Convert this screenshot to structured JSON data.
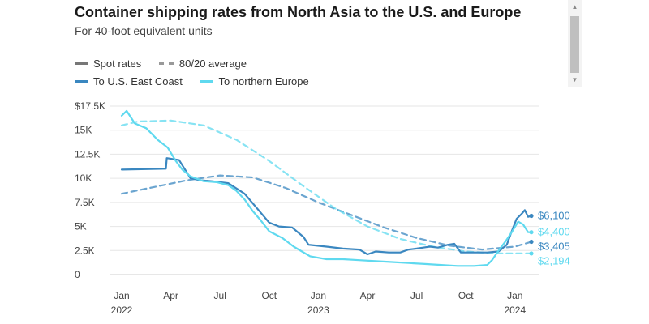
{
  "chart_data": {
    "type": "line",
    "title": "Container shipping rates from North Asia to the U.S. and Europe",
    "subtitle": "For 40-foot equivalent units",
    "legend": {
      "style_items": [
        {
          "label": "Spot rates",
          "style": "solid"
        },
        {
          "label": "80/20 average",
          "style": "dashed"
        }
      ],
      "color_items": [
        {
          "label": "To U.S. East Coast",
          "color": "#3a87c0"
        },
        {
          "label": "To northern Europe",
          "color": "#5fd9ef"
        }
      ]
    },
    "xlim": [
      0,
      25
    ],
    "ylim": [
      0,
      17500
    ],
    "y_ticks": [
      {
        "value": 0,
        "label": "0"
      },
      {
        "value": 2500,
        "label": "2.5K"
      },
      {
        "value": 5000,
        "label": "5K"
      },
      {
        "value": 7500,
        "label": "7.5K"
      },
      {
        "value": 10000,
        "label": "10K"
      },
      {
        "value": 12500,
        "label": "12.5K"
      },
      {
        "value": 15000,
        "label": "15K"
      },
      {
        "value": 17500,
        "label": "$17.5K"
      }
    ],
    "x_ticks": [
      {
        "value": 0,
        "label": "Jan",
        "year": "2022"
      },
      {
        "value": 3,
        "label": "Apr",
        "year": ""
      },
      {
        "value": 6,
        "label": "Jul",
        "year": ""
      },
      {
        "value": 9,
        "label": "Oct",
        "year": ""
      },
      {
        "value": 12,
        "label": "Jan",
        "year": "2023"
      },
      {
        "value": 15,
        "label": "Apr",
        "year": ""
      },
      {
        "value": 18,
        "label": "Jul",
        "year": ""
      },
      {
        "value": 21,
        "label": "Oct",
        "year": ""
      },
      {
        "value": 24,
        "label": "Jan",
        "year": "2024"
      }
    ],
    "series": [
      {
        "name": "To U.S. East Coast (80/20 average)",
        "color": "#3a87c0",
        "style": "dashed",
        "x": [
          0,
          2,
          4,
          6,
          8,
          10,
          12,
          14,
          16,
          18,
          20,
          22,
          24,
          25
        ],
        "y": [
          8400,
          9100,
          9800,
          10300,
          10100,
          9000,
          7500,
          6200,
          4900,
          3800,
          3000,
          2600,
          2900,
          3405
        ]
      },
      {
        "name": "To northern Europe (80/20 average)",
        "color": "#5fd9ef",
        "style": "dashed",
        "x": [
          0,
          1,
          3,
          5,
          7,
          9,
          11,
          13,
          15,
          17,
          19,
          21,
          23,
          25
        ],
        "y": [
          15500,
          15900,
          16000,
          15500,
          14000,
          11800,
          9300,
          6900,
          5000,
          3700,
          2900,
          2400,
          2200,
          2194
        ]
      },
      {
        "name": "To U.S. East Coast (spot rates)",
        "color": "#3a87c0",
        "style": "solid",
        "x": [
          0,
          2.7,
          2.75,
          3.5,
          4.2,
          4.8,
          5.5,
          6.5,
          7.5,
          8.3,
          9.0,
          9.6,
          10.4,
          11.1,
          11.4,
          12.5,
          13.5,
          14.5,
          15,
          15.5,
          16.3,
          17,
          17.5,
          18,
          18.4,
          18.8,
          19.3,
          19.9,
          20.3,
          20.7,
          21.5,
          22.3,
          23.0,
          23.5,
          23.8,
          24.1,
          24.4,
          24.6,
          24.8,
          25
        ],
        "y": [
          10900,
          11000,
          12100,
          11900,
          10000,
          9800,
          9700,
          9500,
          8400,
          6800,
          5400,
          5000,
          4900,
          3900,
          3100,
          2900,
          2700,
          2600,
          2100,
          2400,
          2300,
          2300,
          2600,
          2700,
          2800,
          2900,
          2800,
          3100,
          3200,
          2300,
          2300,
          2300,
          2400,
          3100,
          4500,
          5800,
          6300,
          6700,
          6000,
          6100
        ]
      },
      {
        "name": "To northern Europe (spot rates)",
        "color": "#5fd9ef",
        "style": "solid",
        "x": [
          0,
          0.3,
          0.8,
          1.5,
          2.2,
          2.8,
          3.3,
          3.7,
          4.2,
          5.0,
          5.8,
          6.5,
          7.0,
          7.5,
          8.0,
          8.5,
          9.0,
          9.8,
          10.5,
          11.0,
          11.5,
          12.5,
          13.5,
          14.5,
          15.5,
          16.5,
          17.5,
          18.5,
          19.5,
          20.5,
          21.5,
          22.3,
          22.6,
          23.0,
          23.4,
          23.8,
          24.2,
          24.5,
          24.8,
          25
        ],
        "y": [
          16500,
          17000,
          15700,
          15200,
          14000,
          13200,
          11800,
          10900,
          10200,
          9700,
          9600,
          9300,
          8700,
          7800,
          6600,
          5600,
          4500,
          3800,
          2900,
          2400,
          1900,
          1600,
          1600,
          1500,
          1400,
          1300,
          1200,
          1100,
          1000,
          900,
          900,
          1000,
          1500,
          2500,
          3400,
          4400,
          5500,
          5200,
          4400,
          4400
        ]
      }
    ],
    "end_labels": [
      {
        "label": "$6,100",
        "value": 6100,
        "color": "#3a87c0"
      },
      {
        "label": "$4,400",
        "value": 4400,
        "color": "#5fd9ef"
      },
      {
        "label": "$3,405",
        "value": 3405,
        "color": "#3a87c0"
      },
      {
        "label": "$2,194",
        "value": 2194,
        "color": "#5fd9ef"
      }
    ]
  },
  "scrollbar": {
    "up_icon": "up-arrow-icon",
    "down_icon": "down-arrow-icon"
  }
}
